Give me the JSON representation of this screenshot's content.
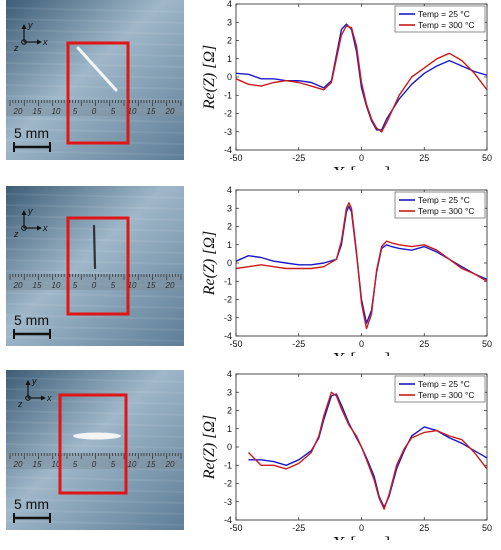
{
  "rows": [
    {
      "photo": {
        "axes": {
          "x": "x",
          "y": "y",
          "z": "z"
        },
        "scale_label": "5 mm",
        "ruler_marks": [
          "20",
          "15",
          "10",
          "5",
          "0",
          "5",
          "10",
          "15",
          "20"
        ],
        "crack": "diagonal"
      },
      "chart_data": {
        "type": "line",
        "xlabel": "X [mm]",
        "ylabel": "Re(Z) [Ω]",
        "xlim": [
          -50,
          50
        ],
        "ylim": [
          -4,
          4
        ],
        "xticks": [
          "-50",
          "-25",
          "0",
          "25",
          "50"
        ],
        "yticks": [
          "-4",
          "-3",
          "-2",
          "-1",
          "0",
          "1",
          "2",
          "3",
          "4"
        ],
        "legend_position": "top-right",
        "series": [
          {
            "name": "Temp = 25 °C",
            "color": "#1a1acc",
            "x": [
              -50,
              -45,
              -40,
              -35,
              -30,
              -25,
              -20,
              -15,
              -12,
              -10,
              -8,
              -6,
              -4,
              -2,
              0,
              2,
              4,
              6,
              8,
              10,
              15,
              20,
              25,
              30,
              35,
              40,
              45,
              50
            ],
            "y": [
              0.2,
              0.15,
              -0.1,
              -0.1,
              -0.2,
              -0.2,
              -0.3,
              -0.6,
              -0.2,
              1.2,
              2.6,
              2.9,
              2.6,
              1.4,
              -0.6,
              -1.6,
              -2.4,
              -2.9,
              -2.9,
              -2.3,
              -1.2,
              -0.4,
              0.2,
              0.6,
              0.9,
              0.6,
              0.3,
              0.1
            ]
          },
          {
            "name": "Temp = 300 °C",
            "color": "#cc1a1a",
            "x": [
              -50,
              -45,
              -40,
              -35,
              -30,
              -25,
              -20,
              -15,
              -12,
              -10,
              -8,
              -6,
              -4,
              -2,
              0,
              2,
              4,
              6,
              8,
              10,
              15,
              20,
              25,
              30,
              35,
              40,
              45,
              50
            ],
            "y": [
              -0.1,
              -0.4,
              -0.5,
              -0.3,
              -0.2,
              -0.3,
              -0.5,
              -0.7,
              -0.3,
              1.0,
              2.3,
              2.8,
              2.7,
              1.7,
              -0.3,
              -1.5,
              -2.3,
              -2.8,
              -3.0,
              -2.5,
              -1.0,
              0.0,
              0.5,
              1.0,
              1.3,
              0.9,
              0.2,
              -0.7
            ]
          }
        ]
      }
    },
    {
      "photo": {
        "axes": {
          "x": "x",
          "y": "y",
          "z": "z"
        },
        "scale_label": "5 mm",
        "ruler_marks": [
          "20",
          "15",
          "10",
          "5",
          "0",
          "5",
          "10",
          "15",
          "20"
        ],
        "crack": "vertical"
      },
      "chart_data": {
        "type": "line",
        "xlabel": "X [mm]",
        "ylabel": "Re(Z) [Ω]",
        "xlim": [
          -50,
          50
        ],
        "ylim": [
          -4,
          4
        ],
        "xticks": [
          "-50",
          "-25",
          "0",
          "25",
          "50"
        ],
        "yticks": [
          "-4",
          "-3",
          "-2",
          "-1",
          "0",
          "1",
          "2",
          "3",
          "4"
        ],
        "legend_position": "top-right",
        "series": [
          {
            "name": "Temp = 25 °C",
            "color": "#1a1acc",
            "x": [
              -50,
              -45,
              -40,
              -35,
              -30,
              -25,
              -20,
              -15,
              -10,
              -8,
              -6,
              -5,
              -4,
              -2,
              0,
              2,
              4,
              6,
              8,
              10,
              12,
              15,
              20,
              25,
              30,
              35,
              40,
              45,
              50
            ],
            "y": [
              0.1,
              0.4,
              0.3,
              0.1,
              0.0,
              -0.1,
              -0.1,
              0.0,
              0.2,
              1.0,
              2.8,
              3.1,
              2.8,
              0.5,
              -2.0,
              -3.3,
              -2.6,
              -0.5,
              0.8,
              1.0,
              0.9,
              0.8,
              0.7,
              0.9,
              0.6,
              0.2,
              -0.2,
              -0.6,
              -0.9
            ]
          },
          {
            "name": "Temp = 300 °C",
            "color": "#cc1a1a",
            "x": [
              -50,
              -45,
              -40,
              -35,
              -30,
              -25,
              -20,
              -15,
              -10,
              -8,
              -6,
              -5,
              -4,
              -2,
              0,
              2,
              4,
              6,
              8,
              10,
              12,
              15,
              20,
              25,
              30,
              35,
              40,
              45,
              50
            ],
            "y": [
              -0.3,
              -0.2,
              -0.1,
              -0.2,
              -0.3,
              -0.3,
              -0.3,
              -0.2,
              0.2,
              1.2,
              3.0,
              3.3,
              3.0,
              0.6,
              -2.2,
              -3.6,
              -2.8,
              -0.4,
              0.9,
              1.2,
              1.1,
              1.0,
              0.9,
              1.0,
              0.7,
              0.2,
              -0.3,
              -0.6,
              -1.0
            ]
          }
        ]
      }
    },
    {
      "photo": {
        "axes": {
          "x": "x",
          "y": "y",
          "z": "z"
        },
        "scale_label": "5 mm",
        "ruler_marks": [
          "20",
          "15",
          "10",
          "5",
          "0",
          "5",
          "10",
          "15",
          "20"
        ],
        "crack": "horizontal"
      },
      "chart_data": {
        "type": "line",
        "xlabel": "X [mm]",
        "ylabel": "Re(Z) [Ω]",
        "xlim": [
          -50,
          50
        ],
        "ylim": [
          -4,
          4
        ],
        "xticks": [
          "-50",
          "-25",
          "0",
          "25",
          "50"
        ],
        "yticks": [
          "-4",
          "-3",
          "-2",
          "-1",
          "0",
          "1",
          "2",
          "3",
          "4"
        ],
        "legend_position": "top-right",
        "series": [
          {
            "name": "Temp = 25 °C",
            "color": "#1a1acc",
            "x": [
              -45,
              -40,
              -35,
              -30,
              -25,
              -20,
              -17,
              -15,
              -12,
              -10,
              -8,
              -5,
              -2,
              0,
              2,
              5,
              7,
              9,
              11,
              14,
              17,
              20,
              25,
              30,
              35,
              40,
              45,
              50
            ],
            "y": [
              -0.7,
              -0.7,
              -0.8,
              -1.0,
              -0.7,
              -0.2,
              0.5,
              1.5,
              2.8,
              2.9,
              2.3,
              1.3,
              0.5,
              0.0,
              -0.6,
              -1.6,
              -2.7,
              -3.3,
              -2.7,
              -1.2,
              -0.2,
              0.6,
              1.1,
              0.9,
              0.5,
              0.2,
              -0.2,
              -0.6
            ]
          },
          {
            "name": "Temp = 300 °C",
            "color": "#cc1a1a",
            "x": [
              -45,
              -40,
              -35,
              -30,
              -25,
              -20,
              -17,
              -15,
              -12,
              -10,
              -8,
              -5,
              -2,
              0,
              2,
              5,
              7,
              9,
              11,
              14,
              17,
              20,
              25,
              30,
              35,
              40,
              45,
              50
            ],
            "y": [
              -0.3,
              -1.0,
              -1.0,
              -1.2,
              -0.9,
              -0.3,
              0.6,
              1.7,
              3.0,
              2.8,
              2.1,
              1.2,
              0.6,
              0.0,
              -0.7,
              -1.8,
              -2.8,
              -3.4,
              -2.6,
              -1.0,
              -0.1,
              0.5,
              0.8,
              0.9,
              0.6,
              0.4,
              -0.3,
              -1.2
            ]
          }
        ]
      }
    }
  ]
}
